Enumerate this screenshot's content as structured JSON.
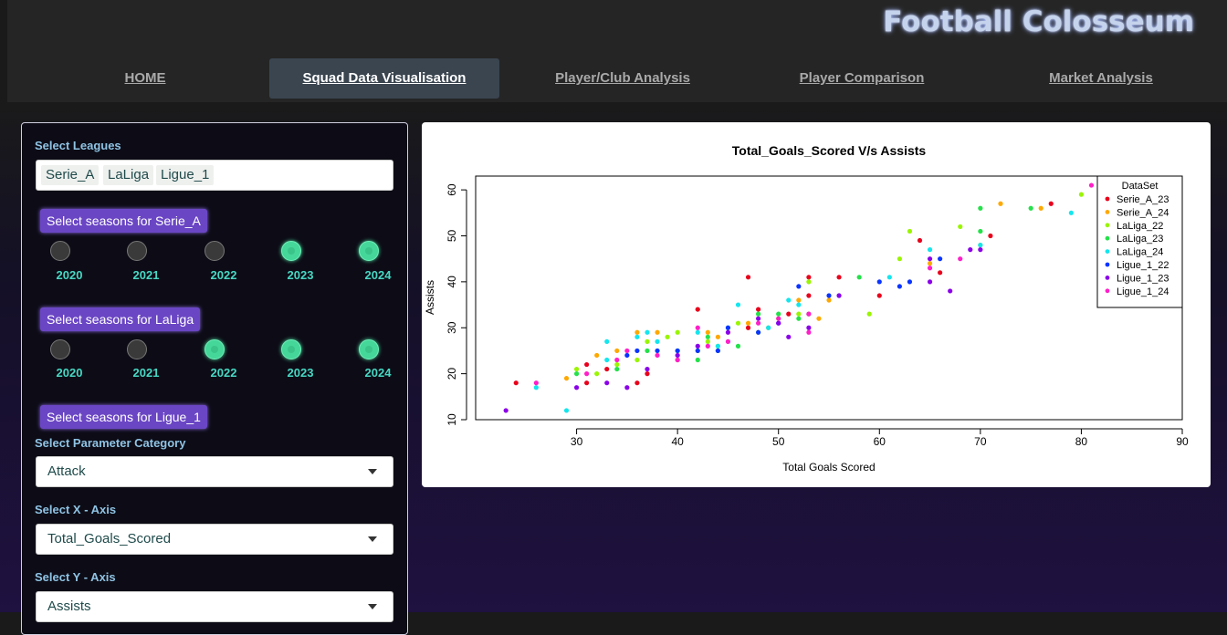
{
  "app": {
    "title": "Football Colosseum"
  },
  "nav": {
    "tabs": [
      {
        "label": "HOME",
        "active": false
      },
      {
        "label": "Squad Data Visualisation",
        "active": true
      },
      {
        "label": "Player/Club Analysis",
        "active": false
      },
      {
        "label": "Player Comparison",
        "active": false
      },
      {
        "label": "Market Analysis",
        "active": false
      }
    ]
  },
  "sidebar": {
    "leagues_label": "Select Leagues",
    "leagues": [
      "Serie_A",
      "LaLiga",
      "Ligue_1"
    ],
    "season_groups": [
      {
        "button": "Select seasons for Serie_A",
        "years": [
          "2020",
          "2021",
          "2022",
          "2023",
          "2024"
        ],
        "selected": [
          false,
          false,
          false,
          true,
          true
        ]
      },
      {
        "button": "Select seasons for LaLiga",
        "years": [
          "2020",
          "2021",
          "2022",
          "2023",
          "2024"
        ],
        "selected": [
          false,
          false,
          true,
          true,
          true
        ]
      },
      {
        "button": "Select seasons for Ligue_1"
      }
    ],
    "param_label": "Select Parameter Category",
    "param_value": "Attack",
    "x_label": "Select X - Axis",
    "x_value": "Total_Goals_Scored",
    "y_label": "Select Y - Axis",
    "y_value": "Assists"
  },
  "chart_data": {
    "type": "scatter",
    "title": "Total_Goals_Scored  V/s  Assists",
    "xlabel": "Total Goals Scored",
    "ylabel": "Assists",
    "xlim": [
      20,
      90
    ],
    "ylim": [
      10,
      63
    ],
    "xticks": [
      30,
      40,
      50,
      60,
      70,
      80,
      90
    ],
    "yticks": [
      10,
      20,
      30,
      40,
      50,
      60
    ],
    "legend_title": "DataSet",
    "legend_position": "top-right",
    "series": [
      {
        "name": "Serie_A_23",
        "color": "#e8001c",
        "points": [
          [
            24,
            18
          ],
          [
            31,
            18
          ],
          [
            31,
            22
          ],
          [
            33,
            21
          ],
          [
            37,
            20
          ],
          [
            42,
            34
          ],
          [
            47,
            30
          ],
          [
            47,
            41
          ],
          [
            48,
            34
          ],
          [
            51,
            33
          ],
          [
            53,
            41
          ],
          [
            53,
            37
          ],
          [
            56,
            41
          ],
          [
            60,
            37
          ],
          [
            64,
            49
          ],
          [
            66,
            42
          ],
          [
            71,
            50
          ],
          [
            77,
            57
          ],
          [
            36,
            18
          ]
        ]
      },
      {
        "name": "Serie_A_24",
        "color": "#ffa800",
        "points": [
          [
            29,
            19
          ],
          [
            32,
            24
          ],
          [
            34,
            25
          ],
          [
            36,
            29
          ],
          [
            38,
            29
          ],
          [
            43,
            29
          ],
          [
            44,
            28
          ],
          [
            47,
            31
          ],
          [
            49,
            30
          ],
          [
            52,
            36
          ],
          [
            54,
            32
          ],
          [
            55,
            36
          ],
          [
            65,
            44
          ],
          [
            70,
            48
          ],
          [
            72,
            57
          ],
          [
            76,
            56
          ]
        ]
      },
      {
        "name": "LaLiga_22",
        "color": "#9af500",
        "points": [
          [
            30,
            21
          ],
          [
            32,
            20
          ],
          [
            34,
            22
          ],
          [
            36,
            23
          ],
          [
            37,
            27
          ],
          [
            39,
            28
          ],
          [
            40,
            29
          ],
          [
            40,
            23
          ],
          [
            42,
            25
          ],
          [
            43,
            27
          ],
          [
            44,
            26
          ],
          [
            46,
            31
          ],
          [
            48,
            29
          ],
          [
            50,
            32
          ],
          [
            52,
            33
          ],
          [
            53,
            40
          ],
          [
            59,
            33
          ],
          [
            62,
            45
          ],
          [
            63,
            51
          ],
          [
            68,
            52
          ],
          [
            80,
            59
          ]
        ]
      },
      {
        "name": "LaLiga_23",
        "color": "#24e14a",
        "points": [
          [
            30,
            20
          ],
          [
            34,
            21
          ],
          [
            37,
            25
          ],
          [
            40,
            25
          ],
          [
            42,
            23
          ],
          [
            43,
            28
          ],
          [
            44,
            25
          ],
          [
            46,
            26
          ],
          [
            48,
            33
          ],
          [
            50,
            33
          ],
          [
            52,
            32
          ],
          [
            53,
            33
          ],
          [
            58,
            41
          ],
          [
            70,
            51
          ],
          [
            70,
            56
          ],
          [
            75,
            56
          ]
        ]
      },
      {
        "name": "LaLiga_24",
        "color": "#14e6ee",
        "points": [
          [
            26,
            17
          ],
          [
            29,
            12
          ],
          [
            33,
            27
          ],
          [
            33,
            23
          ],
          [
            36,
            28
          ],
          [
            37,
            29
          ],
          [
            38,
            27
          ],
          [
            42,
            29
          ],
          [
            44,
            26
          ],
          [
            45,
            30
          ],
          [
            46,
            35
          ],
          [
            49,
            30
          ],
          [
            51,
            36
          ],
          [
            52,
            35
          ],
          [
            56,
            37
          ],
          [
            61,
            41
          ],
          [
            65,
            47
          ],
          [
            70,
            48
          ],
          [
            79,
            55
          ]
        ]
      },
      {
        "name": "Ligue_1_22",
        "color": "#0a34ff",
        "points": [
          [
            35,
            24
          ],
          [
            36,
            25
          ],
          [
            38,
            25
          ],
          [
            40,
            25
          ],
          [
            42,
            25
          ],
          [
            44,
            25
          ],
          [
            45,
            30
          ],
          [
            48,
            29
          ],
          [
            50,
            31
          ],
          [
            52,
            39
          ],
          [
            55,
            37
          ],
          [
            60,
            40
          ],
          [
            62,
            39
          ],
          [
            63,
            40
          ],
          [
            66,
            45
          ],
          [
            82,
            61
          ]
        ]
      },
      {
        "name": "Ligue_1_23",
        "color": "#8a00e8",
        "points": [
          [
            23,
            12
          ],
          [
            30,
            17
          ],
          [
            33,
            18
          ],
          [
            35,
            17
          ],
          [
            37,
            21
          ],
          [
            40,
            24
          ],
          [
            42,
            26
          ],
          [
            45,
            29
          ],
          [
            48,
            32
          ],
          [
            50,
            31
          ],
          [
            51,
            28
          ],
          [
            53,
            30
          ],
          [
            56,
            37
          ],
          [
            65,
            40
          ],
          [
            67,
            38
          ],
          [
            69,
            47
          ],
          [
            70,
            47
          ],
          [
            65,
            45
          ]
        ]
      },
      {
        "name": "Ligue_1_24",
        "color": "#ff1fc8",
        "points": [
          [
            26,
            18
          ],
          [
            31,
            20
          ],
          [
            34,
            23
          ],
          [
            35,
            25
          ],
          [
            38,
            24
          ],
          [
            40,
            23
          ],
          [
            42,
            30
          ],
          [
            43,
            26
          ],
          [
            45,
            27
          ],
          [
            48,
            31
          ],
          [
            50,
            32
          ],
          [
            53,
            29
          ],
          [
            53,
            33
          ],
          [
            65,
            43
          ],
          [
            68,
            45
          ],
          [
            81,
            61
          ]
        ]
      }
    ]
  }
}
